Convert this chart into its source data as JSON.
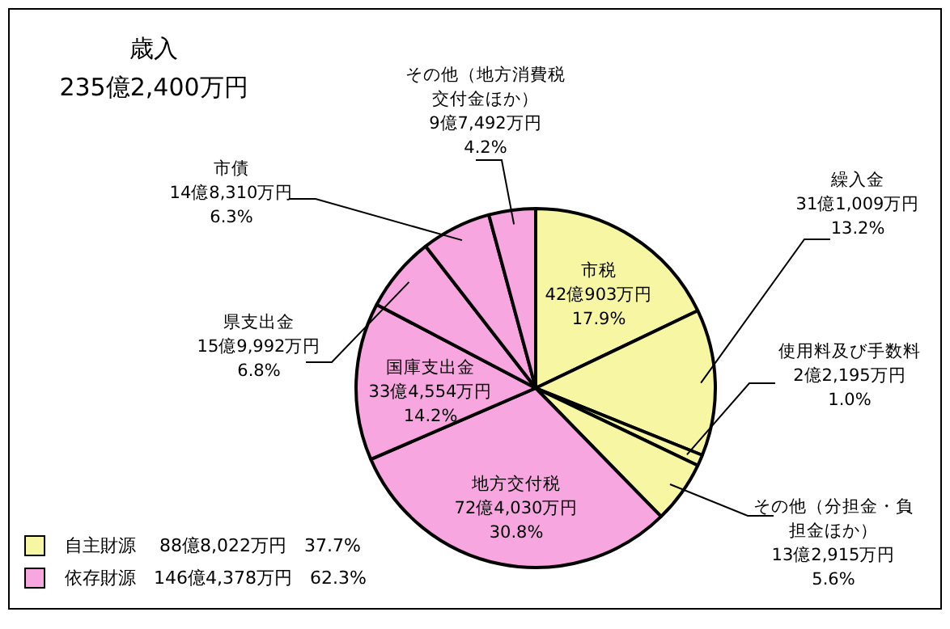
{
  "chart_data": {
    "type": "pie",
    "title": "歳入",
    "subtitle": "235億2,400万円",
    "categories": [
      "市税",
      "繰入金",
      "使用料及び手数料",
      "その他（分担金・負担金ほか）",
      "地方交付税",
      "国庫支出金",
      "県支出金",
      "市債",
      "その他（地方消費税交付金ほか）"
    ],
    "values": [
      17.9,
      13.2,
      1.0,
      5.6,
      30.8,
      14.2,
      6.8,
      6.3,
      4.2
    ],
    "colors": [
      "#f7f7a3",
      "#f7f7a3",
      "#f7f7a3",
      "#f7f7a3",
      "#f7a6df",
      "#f7a6df",
      "#f7a6df",
      "#f7a6df",
      "#f7a6df"
    ],
    "value_labels": [
      "42億903万円\n17.9%",
      "31億1,009万円\n13.2%",
      "2億2,195万円\n1.0%",
      "13億2,915万円\n5.6%",
      "72億4,030万円\n30.8%",
      "33億4,554万円\n14.2%",
      "15億9,992万円\n6.8%",
      "14億8,310万円\n6.3%",
      "9億7,492万円\n4.2%"
    ],
    "annotations": [
      "自主財源　 88億8,022万円　37.7%",
      "依存財源　146億4,378万円　62.3%"
    ],
    "legend": false
  }
}
